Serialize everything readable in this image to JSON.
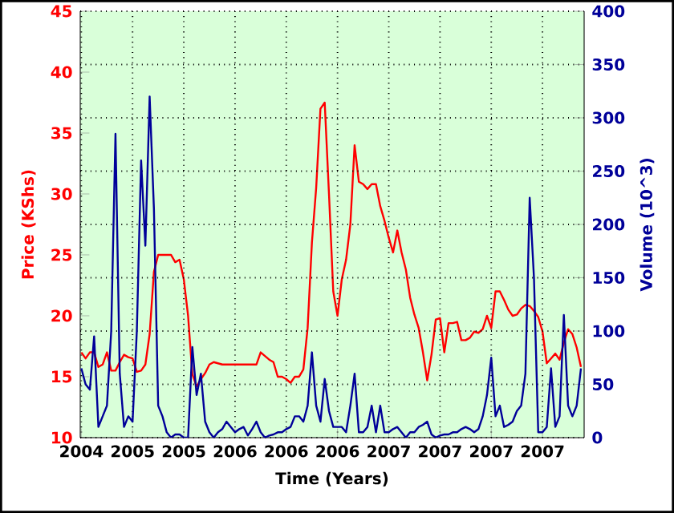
{
  "chart_data": {
    "type": "line",
    "xlabel": "Time (Years)",
    "ylabel": "Price (KShs)",
    "y2label": "Volume (10^3)",
    "categories": [
      "2004",
      null,
      null,
      null,
      null,
      null,
      null,
      null,
      null,
      null,
      null,
      null,
      "2005",
      null,
      null,
      null,
      null,
      null,
      null,
      null,
      null,
      null,
      null,
      null,
      "2005",
      null,
      null,
      null,
      null,
      null,
      null,
      null,
      null,
      null,
      null,
      null,
      "2006",
      null,
      null,
      null,
      null,
      null,
      null,
      null,
      null,
      null,
      null,
      null,
      "2006",
      null,
      null,
      null,
      null,
      null,
      null,
      null,
      null,
      null,
      null,
      null,
      "2006",
      null,
      null,
      null,
      null,
      null,
      null,
      null,
      null,
      null,
      null,
      null,
      "2007",
      null,
      null,
      null,
      null,
      null,
      null,
      null,
      null,
      null,
      null,
      null,
      "2007",
      null,
      null,
      null,
      null,
      null,
      null,
      null,
      null,
      null,
      null,
      null,
      "2007",
      null,
      null,
      null,
      null,
      null,
      null,
      null,
      null,
      null,
      null,
      null,
      "2007",
      null,
      null,
      null,
      null,
      null,
      null,
      null,
      null,
      null
    ],
    "ylim": [
      10,
      45
    ],
    "yticks": [
      10,
      15,
      20,
      25,
      30,
      35,
      40,
      45
    ],
    "y2lim": [
      0,
      400
    ],
    "y2ticks": [
      0,
      50,
      100,
      150,
      200,
      250,
      300,
      350,
      400
    ],
    "grid": true,
    "series": [
      {
        "color": "#ff0000",
        "values": [
          17,
          16.5,
          17,
          17,
          15.8,
          16,
          17,
          15.5,
          15.5,
          16.2,
          16.8,
          16.6,
          16.5,
          15.4,
          15.5,
          16,
          18.5,
          23.6,
          25,
          25,
          25,
          25,
          24.4,
          24.6,
          23,
          20,
          15.2,
          14.2,
          14.8,
          15.3,
          16,
          16.2,
          16.1,
          16,
          16,
          16,
          16,
          16,
          16,
          16,
          16,
          16,
          17,
          16.7,
          16.4,
          16.2,
          15,
          15,
          14.8,
          14.5,
          15,
          15,
          15.6,
          19,
          26,
          30.5,
          37,
          37.5,
          30,
          22,
          20,
          23,
          24.6,
          27.5,
          34,
          31,
          30.8,
          30.4,
          30.8,
          30.8,
          29,
          27.8,
          26.4,
          25.2,
          27,
          25.2,
          23.8,
          21.5,
          20.1,
          19,
          17,
          14.7,
          16.8,
          19.7,
          19.8,
          17,
          19.4,
          19.4,
          19.5,
          18,
          18,
          18.2,
          18.7,
          18.6,
          18.9,
          20,
          19,
          22,
          22,
          21.3,
          20.5,
          20,
          20.1,
          20.6,
          20.9,
          20.8,
          20.4,
          19.9,
          18.7,
          16.1,
          16.5,
          16.9,
          16.4,
          17.8,
          18.9,
          18.5,
          17.4,
          15.8
        ]
      },
      {
        "color": "#000099",
        "axis": "y2",
        "values": [
          65,
          50,
          45,
          95,
          10,
          20,
          30,
          100,
          285,
          60,
          10,
          20,
          15,
          100,
          260,
          180,
          320,
          215,
          30,
          20,
          5,
          0,
          3,
          3,
          0,
          0,
          85,
          40,
          60,
          15,
          5,
          0,
          5,
          8,
          15,
          10,
          5,
          8,
          10,
          2,
          8,
          15,
          5,
          0,
          2,
          3,
          5,
          5,
          8,
          10,
          20,
          20,
          15,
          30,
          80,
          30,
          15,
          55,
          25,
          10,
          10,
          10,
          5,
          30,
          60,
          5,
          5,
          10,
          30,
          5,
          30,
          5,
          5,
          8,
          10,
          5,
          0,
          5,
          5,
          10,
          12,
          15,
          3,
          0,
          2,
          3,
          3,
          5,
          5,
          8,
          10,
          8,
          5,
          8,
          20,
          40,
          75,
          20,
          30,
          10,
          12,
          15,
          25,
          30,
          60,
          225,
          150,
          5,
          5,
          10,
          65,
          10,
          20,
          115,
          30,
          20,
          30,
          65
        ]
      }
    ]
  }
}
